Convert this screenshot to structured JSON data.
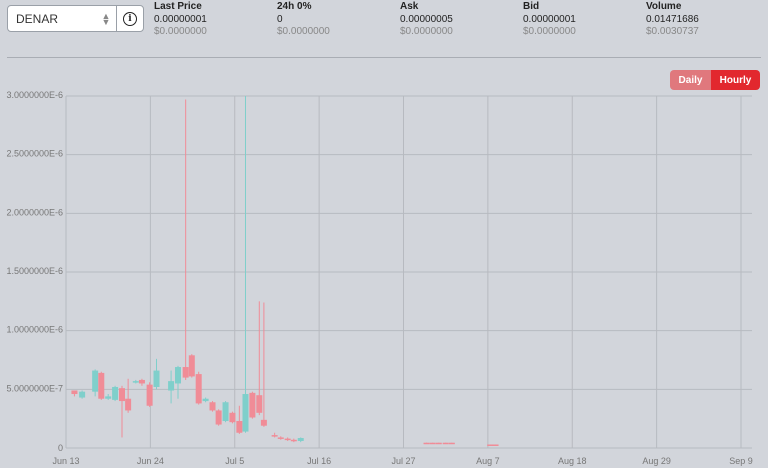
{
  "selector": {
    "value": "DENAR"
  },
  "stats": [
    {
      "header": "Last Price",
      "value": "0.00000001",
      "sub": "$0.0000000"
    },
    {
      "header": "24h 0%",
      "value": "0",
      "sub": "$0.0000000"
    },
    {
      "header": "Ask",
      "value": "0.00000005",
      "sub": "$0.0000000"
    },
    {
      "header": "Bid",
      "value": "0.00000001",
      "sub": "$0.0000000"
    },
    {
      "header": "Volume",
      "value": "0.01471686",
      "sub": "$0.0030737"
    }
  ],
  "toggle": {
    "daily": "Daily",
    "hourly": "Hourly"
  },
  "colors": {
    "up": "#7fcfcb",
    "down": "#f08c97",
    "grid": "#b7bac0",
    "active": "#e2282e",
    "inactive": "#e0787d"
  },
  "chart_data": {
    "type": "candlestick",
    "ylim": [
      0,
      3e-06
    ],
    "y_ticks": [
      {
        "value": 0,
        "label": "0"
      },
      {
        "value": 5e-07,
        "label": "5.0000000E-7"
      },
      {
        "value": 1e-06,
        "label": "1.0000000E-6"
      },
      {
        "value": 1.5e-06,
        "label": "1.5000000E-6"
      },
      {
        "value": 2e-06,
        "label": "2.0000000E-6"
      },
      {
        "value": 2.5e-06,
        "label": "2.5000000E-6"
      },
      {
        "value": 3e-06,
        "label": "3.0000000E-6"
      }
    ],
    "x_ticks": [
      "Jun 13",
      "Jun 24",
      "Jul 5",
      "Jul 16",
      "Jul 27",
      "Aug 7",
      "Aug 18",
      "Aug 29",
      "Sep 9"
    ],
    "x_tick_days": [
      0,
      11,
      22,
      33,
      44,
      55,
      66,
      77,
      88
    ],
    "candles": [
      {
        "d": 1.1,
        "o": 4.9e-07,
        "c": 4.6e-07,
        "h": 4.9e-07,
        "l": 4.4e-07
      },
      {
        "d": 2.1,
        "o": 4.3e-07,
        "c": 4.8e-07,
        "h": 4.9e-07,
        "l": 4.2e-07
      },
      {
        "d": 3.8,
        "o": 4.8e-07,
        "c": 6.6e-07,
        "h": 6.7e-07,
        "l": 4.4e-07
      },
      {
        "d": 4.6,
        "o": 6.4e-07,
        "c": 4.2e-07,
        "h": 6.5e-07,
        "l": 4.1e-07
      },
      {
        "d": 5.5,
        "o": 4.2e-07,
        "c": 4.4e-07,
        "h": 4.6e-07,
        "l": 4.1e-07
      },
      {
        "d": 6.4,
        "o": 4.1e-07,
        "c": 5.2e-07,
        "h": 5.3e-07,
        "l": 4e-07
      },
      {
        "d": 7.3,
        "o": 5.1e-07,
        "c": 4e-07,
        "h": 5.3e-07,
        "l": 9e-08
      },
      {
        "d": 8.1,
        "o": 4.2e-07,
        "c": 3.2e-07,
        "h": 5.9e-07,
        "l": 3e-07
      },
      {
        "d": 9.1,
        "o": 5.6e-07,
        "c": 5.7e-07,
        "h": 5.8e-07,
        "l": 5.5e-07
      },
      {
        "d": 9.9,
        "o": 5.8e-07,
        "c": 5.5e-07,
        "h": 5.9e-07,
        "l": 5.3e-07
      },
      {
        "d": 10.9,
        "o": 5.4e-07,
        "c": 3.6e-07,
        "h": 5.6e-07,
        "l": 3.5e-07
      },
      {
        "d": 11.8,
        "o": 5.2e-07,
        "c": 6.6e-07,
        "h": 7.6e-07,
        "l": 5e-07
      },
      {
        "d": 13.7,
        "o": 4.9e-07,
        "c": 5.7e-07,
        "h": 6.6e-07,
        "l": 3.8e-07
      },
      {
        "d": 14.6,
        "o": 5.5e-07,
        "c": 6.9e-07,
        "h": 7e-07,
        "l": 4.2e-07
      },
      {
        "d": 15.6,
        "o": 6.9e-07,
        "c": 6e-07,
        "h": 2.97e-06,
        "l": 5.8e-07
      },
      {
        "d": 16.4,
        "o": 7.9e-07,
        "c": 6.1e-07,
        "h": 8e-07,
        "l": 6e-07
      },
      {
        "d": 17.3,
        "o": 6.3e-07,
        "c": 3.8e-07,
        "h": 6.5e-07,
        "l": 3.7e-07
      },
      {
        "d": 18.2,
        "o": 4e-07,
        "c": 4.2e-07,
        "h": 4.3e-07,
        "l": 3.9e-07
      },
      {
        "d": 19.1,
        "o": 3.9e-07,
        "c": 3.2e-07,
        "h": 4e-07,
        "l": 3.1e-07
      },
      {
        "d": 19.9,
        "o": 3.2e-07,
        "c": 2e-07,
        "h": 3.3e-07,
        "l": 1.9e-07
      },
      {
        "d": 20.8,
        "o": 2.3e-07,
        "c": 3.9e-07,
        "h": 4e-07,
        "l": 2.2e-07
      },
      {
        "d": 21.7,
        "o": 3e-07,
        "c": 2.2e-07,
        "h": 3.1e-07,
        "l": 2.1e-07
      },
      {
        "d": 22.6,
        "o": 2.3e-07,
        "c": 1.3e-07,
        "h": 3.6e-07,
        "l": 1.2e-07
      },
      {
        "d": 23.4,
        "o": 1.4e-07,
        "c": 4.6e-07,
        "h": 3e-06,
        "l": 1.3e-07
      },
      {
        "d": 24.3,
        "o": 4.7e-07,
        "c": 2.6e-07,
        "h": 4.8e-07,
        "l": 2.5e-07
      },
      {
        "d": 25.2,
        "o": 4.5e-07,
        "c": 3e-07,
        "h": 1.25e-06,
        "l": 2.8e-07
      },
      {
        "d": 25.8,
        "o": 2.4e-07,
        "c": 1.9e-07,
        "h": 1.24e-06,
        "l": 1.8e-07
      },
      {
        "d": 27.2,
        "o": 1.1e-07,
        "c": 1e-07,
        "h": 1.3e-07,
        "l": 9e-08
      },
      {
        "d": 28.0,
        "o": 9e-08,
        "c": 8e-08,
        "h": 1e-07,
        "l": 7e-08
      },
      {
        "d": 28.9,
        "o": 8e-08,
        "c": 7e-08,
        "h": 9e-08,
        "l": 6e-08
      },
      {
        "d": 29.7,
        "o": 7e-08,
        "c": 6e-08,
        "h": 8e-08,
        "l": 5e-08
      },
      {
        "d": 30.6,
        "o": 6e-08,
        "c": 8.5e-08,
        "h": 9e-08,
        "l": 5e-08
      },
      {
        "d": 47.0,
        "o": 4.5e-08,
        "c": 3.5e-08,
        "h": 4.5e-08,
        "l": 3.5e-08
      },
      {
        "d": 47.8,
        "o": 4.5e-08,
        "c": 3.5e-08,
        "h": 4.5e-08,
        "l": 3.5e-08
      },
      {
        "d": 48.6,
        "o": 4.5e-08,
        "c": 3.5e-08,
        "h": 4.5e-08,
        "l": 3.5e-08
      },
      {
        "d": 49.5,
        "o": 4.5e-08,
        "c": 3.5e-08,
        "h": 4.5e-08,
        "l": 3.5e-08
      },
      {
        "d": 50.3,
        "o": 4.5e-08,
        "c": 3.5e-08,
        "h": 4.5e-08,
        "l": 3.5e-08
      },
      {
        "d": 55.3,
        "o": 3e-08,
        "c": 2e-08,
        "h": 3e-08,
        "l": 2e-08
      },
      {
        "d": 56.0,
        "o": 3e-08,
        "c": 2e-08,
        "h": 3e-08,
        "l": 2e-08
      }
    ]
  }
}
